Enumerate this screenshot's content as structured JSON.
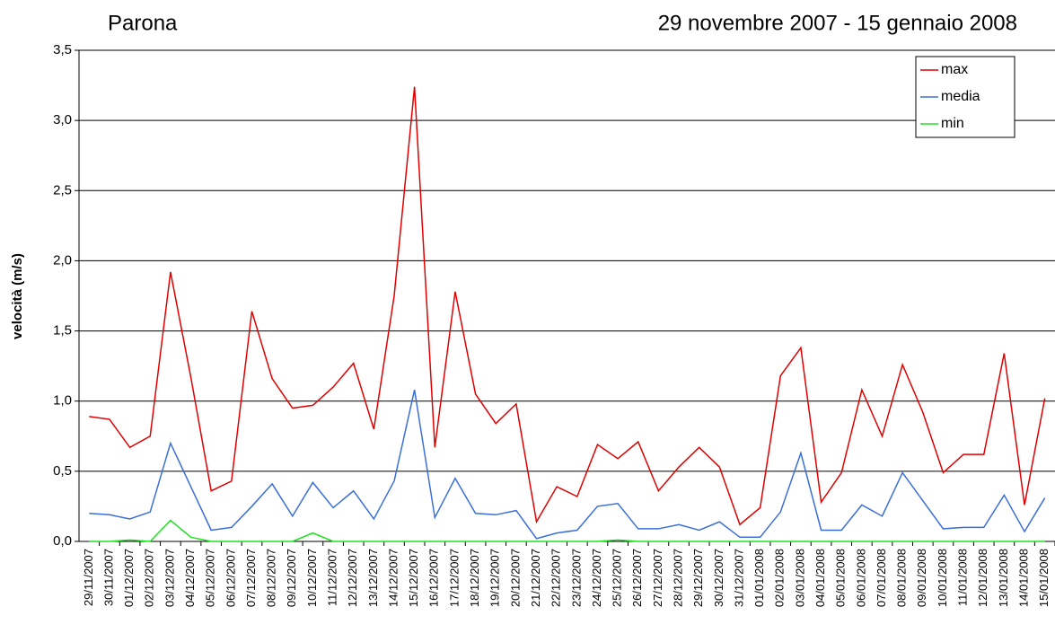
{
  "chart_data": {
    "type": "line",
    "title": "Parona",
    "subtitle": "29 novembre 2007 - 15 gennaio 2008",
    "y_label": "velocità (m/s)",
    "categories": [
      "29/11/2007",
      "30/11/2007",
      "01/12/2007",
      "02/12/2007",
      "03/12/2007",
      "04/12/2007",
      "05/12/2007",
      "06/12/2007",
      "07/12/2007",
      "08/12/2007",
      "09/12/2007",
      "10/12/2007",
      "11/12/2007",
      "12/12/2007",
      "13/12/2007",
      "14/12/2007",
      "15/12/2007",
      "16/12/2007",
      "17/12/2007",
      "18/12/2007",
      "19/12/2007",
      "20/12/2007",
      "21/12/2007",
      "22/12/2007",
      "23/12/2007",
      "24/12/2007",
      "25/12/2007",
      "26/12/2007",
      "27/12/2007",
      "28/12/2007",
      "29/12/2007",
      "30/12/2007",
      "31/12/2007",
      "01/01/2008",
      "02/01/2008",
      "03/01/2008",
      "04/01/2008",
      "05/01/2008",
      "06/01/2008",
      "07/01/2008",
      "08/01/2008",
      "09/01/2008",
      "10/01/2008",
      "11/01/2008",
      "12/01/2008",
      "13/01/2008",
      "14/01/2008",
      "15/01/2008"
    ],
    "series": [
      {
        "name": "max",
        "color": "#e00000",
        "values": [
          0.89,
          0.87,
          0.67,
          0.75,
          1.92,
          1.17,
          0.36,
          0.43,
          1.64,
          1.16,
          0.95,
          0.97,
          1.1,
          1.27,
          0.8,
          1.75,
          3.24,
          0.67,
          1.78,
          1.05,
          0.84,
          0.98,
          0.14,
          0.39,
          0.32,
          0.69,
          0.59,
          0.71,
          0.36,
          0.53,
          0.67,
          0.53,
          0.12,
          0.24,
          1.18,
          1.38,
          0.28,
          0.49,
          1.08,
          0.75,
          1.26,
          0.92,
          0.49,
          0.62,
          0.62,
          1.34,
          0.26,
          1.02
        ]
      },
      {
        "name": "media",
        "color": "#3a6fd8",
        "values": [
          0.2,
          0.19,
          0.16,
          0.21,
          0.7,
          0.39,
          0.08,
          0.1,
          0.25,
          0.41,
          0.18,
          0.42,
          0.24,
          0.36,
          0.16,
          0.43,
          1.08,
          0.17,
          0.45,
          0.2,
          0.19,
          0.22,
          0.02,
          0.06,
          0.08,
          0.25,
          0.27,
          0.09,
          0.09,
          0.12,
          0.08,
          0.14,
          0.03,
          0.03,
          0.21,
          0.63,
          0.08,
          0.08,
          0.26,
          0.18,
          0.49,
          0.29,
          0.09,
          0.1,
          0.1,
          0.33,
          0.07,
          0.31
        ]
      },
      {
        "name": "min",
        "color": "#22e022",
        "values": [
          0,
          0,
          0.01,
          0,
          0.15,
          0.03,
          0,
          0,
          0,
          0,
          0,
          0.06,
          0,
          0,
          0,
          0,
          0,
          0,
          0,
          0,
          0,
          0,
          0,
          0,
          0,
          0,
          0.01,
          0,
          0,
          0,
          0,
          0,
          0,
          0,
          0,
          0,
          0,
          0,
          0,
          0,
          0,
          0,
          0,
          0,
          0,
          0,
          0,
          0
        ]
      }
    ],
    "ylim": [
      0,
      3.5
    ],
    "yticks": [
      {
        "value": 0,
        "label": "0,0"
      },
      {
        "value": 0.5,
        "label": "0,5"
      },
      {
        "value": 1,
        "label": "1,0"
      },
      {
        "value": 1.5,
        "label": "1,5"
      },
      {
        "value": 2,
        "label": "2,0"
      },
      {
        "value": 2.5,
        "label": "2,5"
      },
      {
        "value": 3,
        "label": "3,0"
      },
      {
        "value": 3.5,
        "label": "3,5"
      }
    ],
    "grid": true,
    "legend": "top-right"
  }
}
